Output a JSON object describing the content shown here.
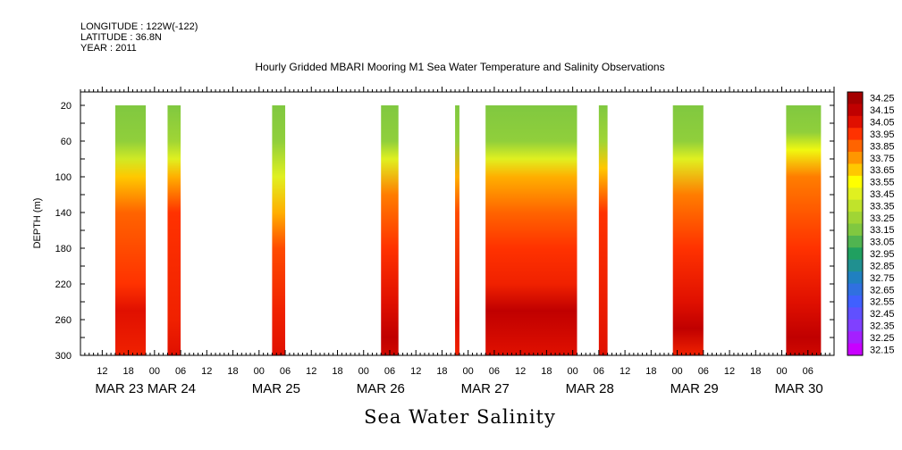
{
  "header": {
    "longitude": "LONGITUDE : 122W(-122)",
    "latitude": "LATITUDE : 36.8N",
    "year": "YEAR : 2011"
  },
  "chart_data": {
    "type": "heatmap",
    "title": "Hourly Gridded MBARI Mooring M1 Sea Water Temperature and Salinity Observations",
    "footer": "Sea Water Salinity",
    "ylabel": "DEPTH (m)",
    "yticks": [
      20,
      60,
      100,
      140,
      180,
      220,
      260,
      300
    ],
    "ylim": [
      300,
      5
    ],
    "x_hour_ticks": [
      "12",
      "18",
      "00",
      "06",
      "12",
      "18",
      "00",
      "06",
      "12",
      "18",
      "00",
      "06",
      "12",
      "18",
      "00",
      "06",
      "12",
      "18",
      "00",
      "06",
      "12",
      "18",
      "00",
      "06",
      "12",
      "18",
      "00",
      "06"
    ],
    "x_day_labels": [
      "MAR 23",
      "MAR 24",
      "MAR 25",
      "MAR 26",
      "MAR 27",
      "MAR 28",
      "MAR 29",
      "MAR 30"
    ],
    "xlim_hours": [
      7,
      180
    ],
    "colorbar": {
      "min": 32.15,
      "max": 34.3,
      "labels": [
        "34.25",
        "34.15",
        "34.05",
        "33.95",
        "33.85",
        "33.75",
        "33.65",
        "33.55",
        "33.45",
        "33.35",
        "33.25",
        "33.15",
        "33.05",
        "32.95",
        "32.85",
        "32.75",
        "32.65",
        "32.55",
        "32.45",
        "32.35",
        "32.25",
        "32.15"
      ]
    },
    "data_blocks": [
      {
        "start_hour": 15,
        "end_hour": 22,
        "profile": [
          [
            20,
            33.15
          ],
          [
            60,
            33.2
          ],
          [
            80,
            33.4
          ],
          [
            100,
            33.65
          ],
          [
            140,
            33.85
          ],
          [
            220,
            33.95
          ],
          [
            250,
            34.05
          ],
          [
            300,
            34.0
          ]
        ]
      },
      {
        "start_hour": 27,
        "end_hour": 30,
        "profile": [
          [
            20,
            33.15
          ],
          [
            60,
            33.25
          ],
          [
            80,
            33.45
          ],
          [
            100,
            33.7
          ],
          [
            140,
            33.95
          ],
          [
            260,
            34.0
          ],
          [
            300,
            34.05
          ]
        ]
      },
      {
        "start_hour": 51,
        "end_hour": 54,
        "profile": [
          [
            20,
            33.15
          ],
          [
            60,
            33.2
          ],
          [
            100,
            33.45
          ],
          [
            140,
            33.7
          ],
          [
            180,
            33.9
          ],
          [
            250,
            34.0
          ],
          [
            300,
            34.05
          ]
        ]
      },
      {
        "start_hour": 76,
        "end_hour": 80,
        "profile": [
          [
            20,
            33.15
          ],
          [
            60,
            33.2
          ],
          [
            80,
            33.45
          ],
          [
            120,
            33.8
          ],
          [
            180,
            33.95
          ],
          [
            240,
            34.05
          ],
          [
            280,
            34.15
          ],
          [
            300,
            34.1
          ]
        ]
      },
      {
        "start_hour": 93,
        "end_hour": 94,
        "profile": [
          [
            20,
            33.15
          ],
          [
            60,
            33.2
          ],
          [
            100,
            33.7
          ],
          [
            140,
            33.9
          ],
          [
            260,
            34.05
          ],
          [
            300,
            34.0
          ]
        ]
      },
      {
        "start_hour": 100,
        "end_hour": 121,
        "profile": [
          [
            20,
            33.15
          ],
          [
            60,
            33.2
          ],
          [
            80,
            33.45
          ],
          [
            100,
            33.7
          ],
          [
            140,
            33.85
          ],
          [
            180,
            33.95
          ],
          [
            220,
            34.0
          ],
          [
            250,
            34.15
          ],
          [
            300,
            34.05
          ]
        ]
      },
      {
        "start_hour": 126,
        "end_hour": 128,
        "profile": [
          [
            20,
            33.15
          ],
          [
            60,
            33.25
          ],
          [
            90,
            33.65
          ],
          [
            140,
            33.95
          ],
          [
            300,
            34.05
          ]
        ]
      },
      {
        "start_hour": 143,
        "end_hour": 150,
        "profile": [
          [
            20,
            33.15
          ],
          [
            60,
            33.2
          ],
          [
            80,
            33.45
          ],
          [
            120,
            33.8
          ],
          [
            180,
            33.95
          ],
          [
            240,
            34.05
          ],
          [
            270,
            34.15
          ],
          [
            300,
            34.0
          ]
        ]
      },
      {
        "start_hour": 169,
        "end_hour": 177,
        "profile": [
          [
            20,
            33.15
          ],
          [
            50,
            33.2
          ],
          [
            70,
            33.5
          ],
          [
            100,
            33.8
          ],
          [
            180,
            33.95
          ],
          [
            240,
            34.05
          ],
          [
            280,
            34.15
          ],
          [
            300,
            34.1
          ]
        ]
      }
    ]
  }
}
